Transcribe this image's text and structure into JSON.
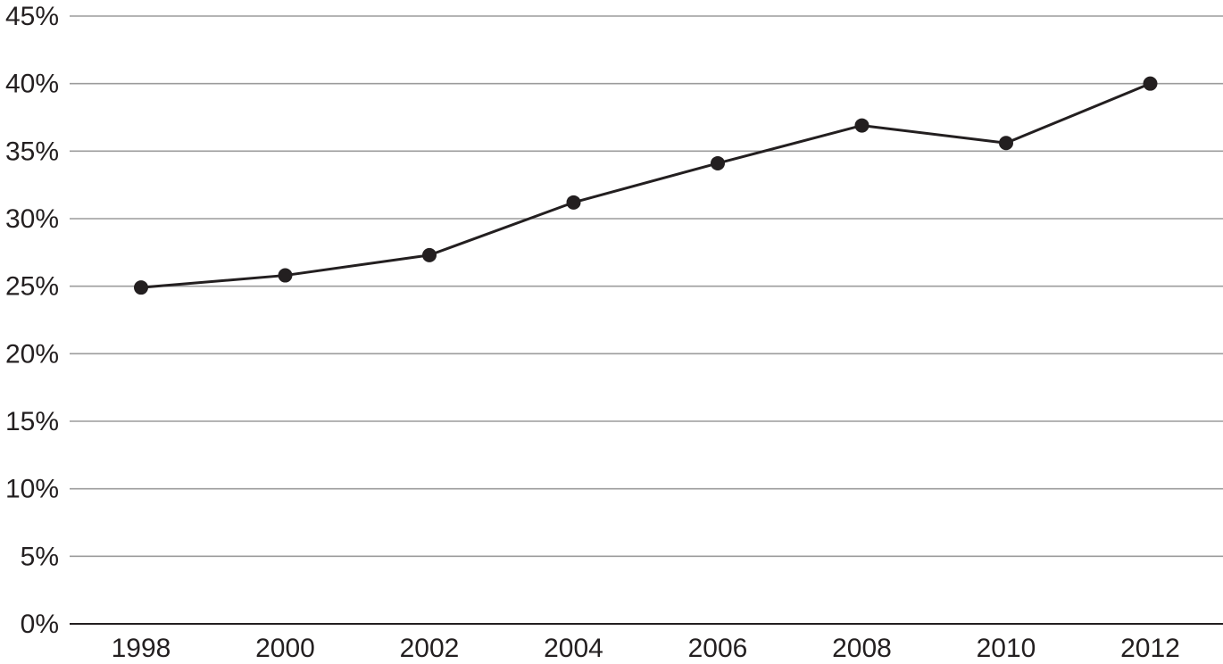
{
  "chart_data": {
    "type": "line",
    "title": "",
    "xlabel": "",
    "ylabel": "",
    "categories": [
      "1998",
      "2000",
      "2002",
      "2004",
      "2006",
      "2008",
      "2010",
      "2012"
    ],
    "series": [
      {
        "values": [
          24.9,
          25.8,
          27.3,
          31.2,
          34.1,
          36.9,
          35.6,
          40.0
        ]
      }
    ],
    "ylim": [
      0,
      45
    ],
    "yticks": [
      0,
      5,
      10,
      15,
      20,
      25,
      30,
      35,
      40,
      45
    ],
    "ytick_labels": [
      "0%",
      "5%",
      "10%",
      "15%",
      "20%",
      "25%",
      "30%",
      "35%",
      "40%",
      "45%"
    ],
    "grid": "horizontal",
    "legend": "none",
    "colors": {
      "line": "#231f20",
      "grid": "#9c9c9c",
      "text": "#231f20"
    }
  }
}
